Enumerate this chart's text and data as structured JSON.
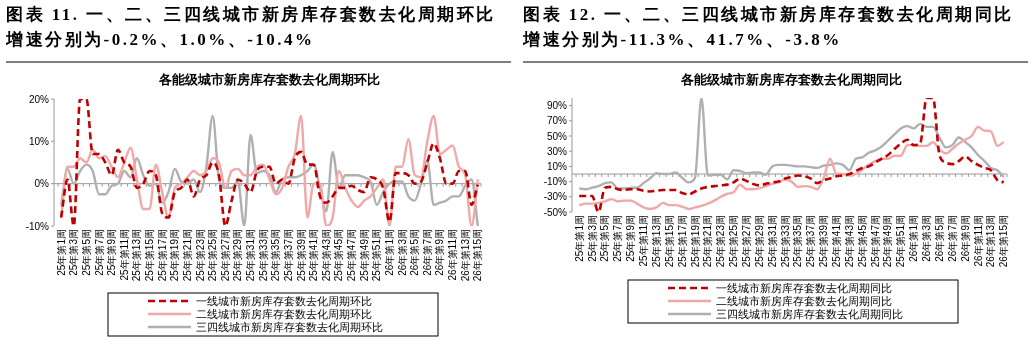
{
  "chart_data": [
    {
      "type": "line",
      "title": "图表 11. 一、二、三四线城市新房库存套数去化周期环比增速分别为-0.2%、1.0%、-10.4%",
      "subtitle": "各能级城市新房库存套数去化周期环比",
      "categories": [
        "25年第1周",
        null,
        "25年第3周",
        null,
        "25年第5周",
        null,
        "25年第7周",
        null,
        "25年第9周",
        null,
        "25年第11周",
        null,
        "25年第13周",
        null,
        "25年第15周",
        null,
        "25年第17周",
        null,
        "25年第19周",
        null,
        "25年第21周",
        null,
        "25年第23周",
        null,
        "25年第25周",
        null,
        "25年第27周",
        null,
        "25年第29周",
        null,
        "25年第31周",
        null,
        "25年第33周",
        null,
        "25年第35周",
        null,
        "25年第37周",
        null,
        "25年第39周",
        null,
        "25年第41周",
        null,
        "25年第43周",
        null,
        "25年第45周",
        null,
        "25年第47周",
        null,
        "25年第49周",
        null,
        "25年第51周",
        null,
        "26年第1周",
        null,
        "26年第3周",
        null,
        "26年第5周",
        null,
        "26年第7周",
        null,
        "26年第9周",
        null,
        "26年第11周",
        null,
        "26年第13周",
        null,
        "26年第15周"
      ],
      "series": [
        {
          "name": "一线城市新房库存套数去化周期环比",
          "color": "#c00000",
          "line_style": "dashed",
          "values": [
            -8,
            1,
            -10,
            20,
            20,
            7,
            7,
            5,
            2,
            8,
            5,
            4,
            -1,
            0,
            3,
            2,
            -7,
            -8,
            -2,
            -1,
            1,
            -3,
            1,
            2,
            5,
            2,
            -10,
            -4,
            1,
            0,
            -2,
            3,
            4,
            4,
            0,
            1,
            0,
            6,
            7.5,
            4.5,
            4.5,
            -3,
            -4.5,
            -3,
            -1,
            -1,
            -0.5,
            -1.5,
            -2,
            1.5,
            1,
            -1,
            -9,
            2.5,
            2.5,
            2,
            0,
            0.5,
            5,
            9.5,
            6,
            0,
            0,
            3,
            3,
            -5,
            -0.2
          ]
        },
        {
          "name": "二线城市新房库存套数去化周期环比",
          "color": "#f0a8a8",
          "line_style": "solid",
          "values": [
            -8,
            4,
            4,
            6,
            5,
            8,
            6,
            6.5,
            4,
            1.5,
            5,
            8.5,
            1,
            -6,
            -6,
            4.5,
            -2,
            -8,
            -1,
            0,
            1.5,
            3,
            2,
            3,
            6,
            5,
            -1,
            3,
            3.5,
            2,
            2,
            4,
            4.5,
            1,
            -2.5,
            -1,
            4,
            7,
            16,
            -8,
            0,
            0,
            -10,
            -8,
            3,
            -1,
            -4,
            -5.5,
            -4,
            -3,
            -1,
            1,
            -10,
            4,
            4,
            10.5,
            2,
            1.5,
            10,
            16,
            7,
            8,
            9,
            4,
            2,
            -10,
            1
          ]
        },
        {
          "name": "三四线城市新房库存套数去化周期环比",
          "color": "#b0b0b0",
          "line_style": "solid",
          "values": [
            -5,
            3.5,
            0,
            3,
            4.5,
            3,
            -2.5,
            -2.5,
            -0.5,
            0,
            3,
            1.5,
            6,
            2,
            -0.5,
            0,
            -4.5,
            -2,
            3.5,
            0.5,
            0,
            1,
            -2,
            4,
            16,
            1,
            -1,
            -1,
            0.5,
            -10,
            11.5,
            2.5,
            3,
            2,
            -2,
            1,
            1.5,
            1.5,
            2,
            3,
            4.5,
            -1,
            -6.5,
            7.5,
            -1,
            2,
            2,
            2,
            1.5,
            0.5,
            -5,
            -2,
            0,
            0.5,
            0.5,
            -3,
            -4,
            0,
            5.5,
            -5,
            -4.5,
            -4,
            -3,
            -3,
            -0.5,
            1,
            -10
          ]
        }
      ],
      "ylim": [
        -10,
        20
      ],
      "yticks": [
        {
          "value": -10,
          "label": "-10%"
        },
        {
          "value": 0,
          "label": "0%"
        },
        {
          "value": 10,
          "label": "10%"
        },
        {
          "value": 20,
          "label": "20%"
        }
      ],
      "legend": "bottom"
    },
    {
      "type": "line",
      "title": "图表 12. 一、二、三四线城市新房库存套数去化周期同比增速分别为-11.3%、41.7%、-3.8%",
      "subtitle": "各能级城市新房库存套数去化周期同比",
      "categories": [
        "25年第1周",
        null,
        "25年第3周",
        null,
        "25年第5周",
        null,
        "25年第7周",
        null,
        "25年第9周",
        null,
        "25年第11周",
        null,
        "25年第13周",
        null,
        "25年第15周",
        null,
        "25年第17周",
        null,
        "25年第19周",
        null,
        "25年第21周",
        null,
        "25年第23周",
        null,
        "25年第25周",
        null,
        "25年第27周",
        null,
        "25年第29周",
        null,
        "25年第31周",
        null,
        "25年第33周",
        null,
        "25年第35周",
        null,
        "25年第37周",
        null,
        "25年第39周",
        null,
        "25年第41周",
        null,
        "25年第43周",
        null,
        "25年第45周",
        null,
        "25年第47周",
        null,
        "25年第49周",
        null,
        "25年第51周",
        null,
        "26年第1周",
        null,
        "26年第3周",
        null,
        "26年第5周",
        null,
        "26年第7周",
        null,
        "26年第9周",
        null,
        "26年第11周",
        null,
        "26年第13周",
        null,
        "26年第15周"
      ],
      "series": [
        {
          "name": "一线城市新房库存套数去化周期同比",
          "color": "#c00000",
          "line_style": "dashed",
          "values": [
            -29,
            -29,
            -29,
            -50,
            -18,
            -17,
            -20,
            -21,
            -20,
            -20,
            -22,
            -23,
            -22,
            -21,
            -21,
            -21,
            -25,
            -27,
            -23,
            -19,
            -17,
            -16,
            -15,
            -14,
            -11,
            -6,
            -9,
            -13,
            -15,
            -13,
            -11,
            -10,
            -6,
            -4,
            -2,
            -3,
            -6,
            -12,
            -8,
            -6,
            -3,
            -2,
            0,
            4,
            8,
            10,
            15,
            20,
            25,
            33,
            40,
            45,
            38,
            40,
            100,
            100,
            25,
            15,
            13,
            17,
            23,
            17,
            12,
            8,
            5,
            -8,
            -11
          ]
        },
        {
          "name": "二线城市新房库存套数去化周期同比",
          "color": "#f0a8a8",
          "line_style": "solid",
          "values": [
            -41,
            -39,
            -39,
            -38,
            -36,
            -33,
            -36,
            -35,
            -35,
            -39,
            -44,
            -46,
            -44,
            -38,
            -41,
            -41,
            -43,
            -46,
            -44,
            -42,
            -39,
            -35,
            -30,
            -26,
            -24,
            -14,
            -20,
            -20,
            -19,
            -16,
            -13,
            -11,
            -7,
            -10,
            -17,
            -16,
            -17,
            -20,
            -5,
            20,
            0,
            0,
            -2,
            0,
            6,
            12,
            17,
            20,
            20,
            24,
            24,
            38,
            38,
            37,
            37,
            42,
            32,
            27,
            33,
            40,
            45,
            50,
            62,
            57,
            56,
            37,
            42
          ]
        },
        {
          "name": "三四线城市新房库存套数去化周期同比",
          "color": "#b0b0b0",
          "line_style": "solid",
          "values": [
            -19,
            -20,
            -18,
            -16,
            -12,
            -11,
            -19,
            -19,
            -18,
            -18,
            -12,
            -6,
            1,
            0,
            0,
            2,
            -5,
            -11,
            -5,
            100,
            -2,
            -1,
            -1,
            -7,
            5,
            4,
            1,
            2,
            2,
            -1,
            10,
            12,
            12,
            11,
            10,
            10,
            9,
            8,
            11,
            12,
            14,
            12,
            5,
            20,
            22,
            28,
            31,
            36,
            44,
            52,
            60,
            63,
            60,
            66,
            62,
            62,
            48,
            35,
            38,
            48,
            42,
            35,
            25,
            17,
            8,
            5,
            -4
          ]
        }
      ],
      "ylim": [
        -50,
        100
      ],
      "yticks": [
        {
          "value": -50,
          "label": "-50%"
        },
        {
          "value": -30,
          "label": "-30%"
        },
        {
          "value": -10,
          "label": "-10%"
        },
        {
          "value": 10,
          "label": "10%"
        },
        {
          "value": 30,
          "label": "30%"
        },
        {
          "value": 50,
          "label": "50%"
        },
        {
          "value": 70,
          "label": "70%"
        },
        {
          "value": 90,
          "label": "90%"
        }
      ],
      "legend": "bottom"
    }
  ]
}
